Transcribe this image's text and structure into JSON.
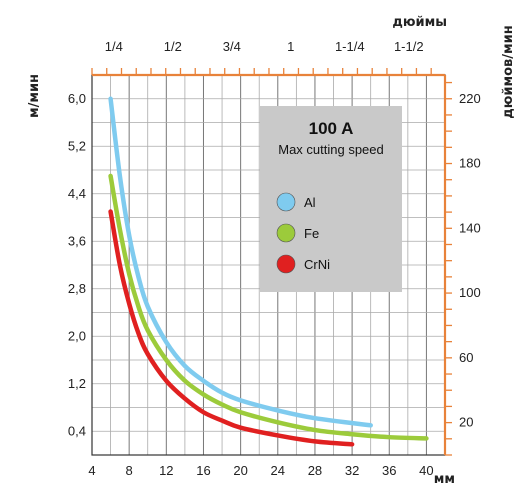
{
  "chart_data": {
    "type": "line",
    "title": "100 A",
    "subtitle": "Max cutting speed",
    "xlabel": "мм",
    "x_top_label": "дюймы",
    "ylabel": "м/мин",
    "y2label": "дюймов/мин",
    "xlim": [
      4,
      42
    ],
    "x_ticks": [
      "4",
      "8",
      "12",
      "16",
      "20",
      "24",
      "28",
      "32",
      "36",
      "40"
    ],
    "x_top_ticks": [
      {
        "label": "1/4",
        "mm": 6.35
      },
      {
        "label": "1/2",
        "mm": 12.7
      },
      {
        "label": "3/4",
        "mm": 19.05
      },
      {
        "label": "1",
        "mm": 25.4
      },
      {
        "label": "1-1/4",
        "mm": 31.75
      },
      {
        "label": "1-1/2",
        "mm": 38.1
      }
    ],
    "ylim": [
      0,
      6.4
    ],
    "y_ticks": [
      "0,4",
      "1,2",
      "2,0",
      "2,8",
      "3,6",
      "4,4",
      "5,2",
      "6,0"
    ],
    "y2_ticks": [
      {
        "label": "20",
        "value": 20
      },
      {
        "label": "60",
        "value": 60
      },
      {
        "label": "100",
        "value": 100
      },
      {
        "label": "140",
        "value": 140
      },
      {
        "label": "180",
        "value": 180
      },
      {
        "label": "220",
        "value": 220
      }
    ],
    "grid": true,
    "legend_position": "top-right",
    "series": [
      {
        "name": "Al",
        "color": "#7fcbef",
        "x": [
          6,
          7,
          8,
          9,
          10,
          12,
          14,
          16,
          18,
          20,
          24,
          28,
          34
        ],
        "y": [
          6.0,
          4.7,
          3.7,
          3.0,
          2.5,
          1.9,
          1.5,
          1.25,
          1.05,
          0.92,
          0.75,
          0.62,
          0.5
        ]
      },
      {
        "name": "Fe",
        "color": "#9ccb3b",
        "x": [
          6,
          7,
          8,
          9,
          10,
          12,
          14,
          16,
          18,
          20,
          24,
          28,
          32,
          36,
          40
        ],
        "y": [
          4.7,
          3.8,
          3.05,
          2.5,
          2.1,
          1.6,
          1.25,
          1.02,
          0.85,
          0.72,
          0.55,
          0.42,
          0.35,
          0.3,
          0.28
        ]
      },
      {
        "name": "CrNi",
        "color": "#e02020",
        "x": [
          6,
          7,
          8,
          9,
          10,
          12,
          14,
          16,
          18,
          20,
          24,
          28,
          32
        ],
        "y": [
          4.1,
          3.2,
          2.55,
          2.05,
          1.7,
          1.25,
          0.95,
          0.72,
          0.58,
          0.46,
          0.33,
          0.23,
          0.18
        ]
      }
    ]
  }
}
